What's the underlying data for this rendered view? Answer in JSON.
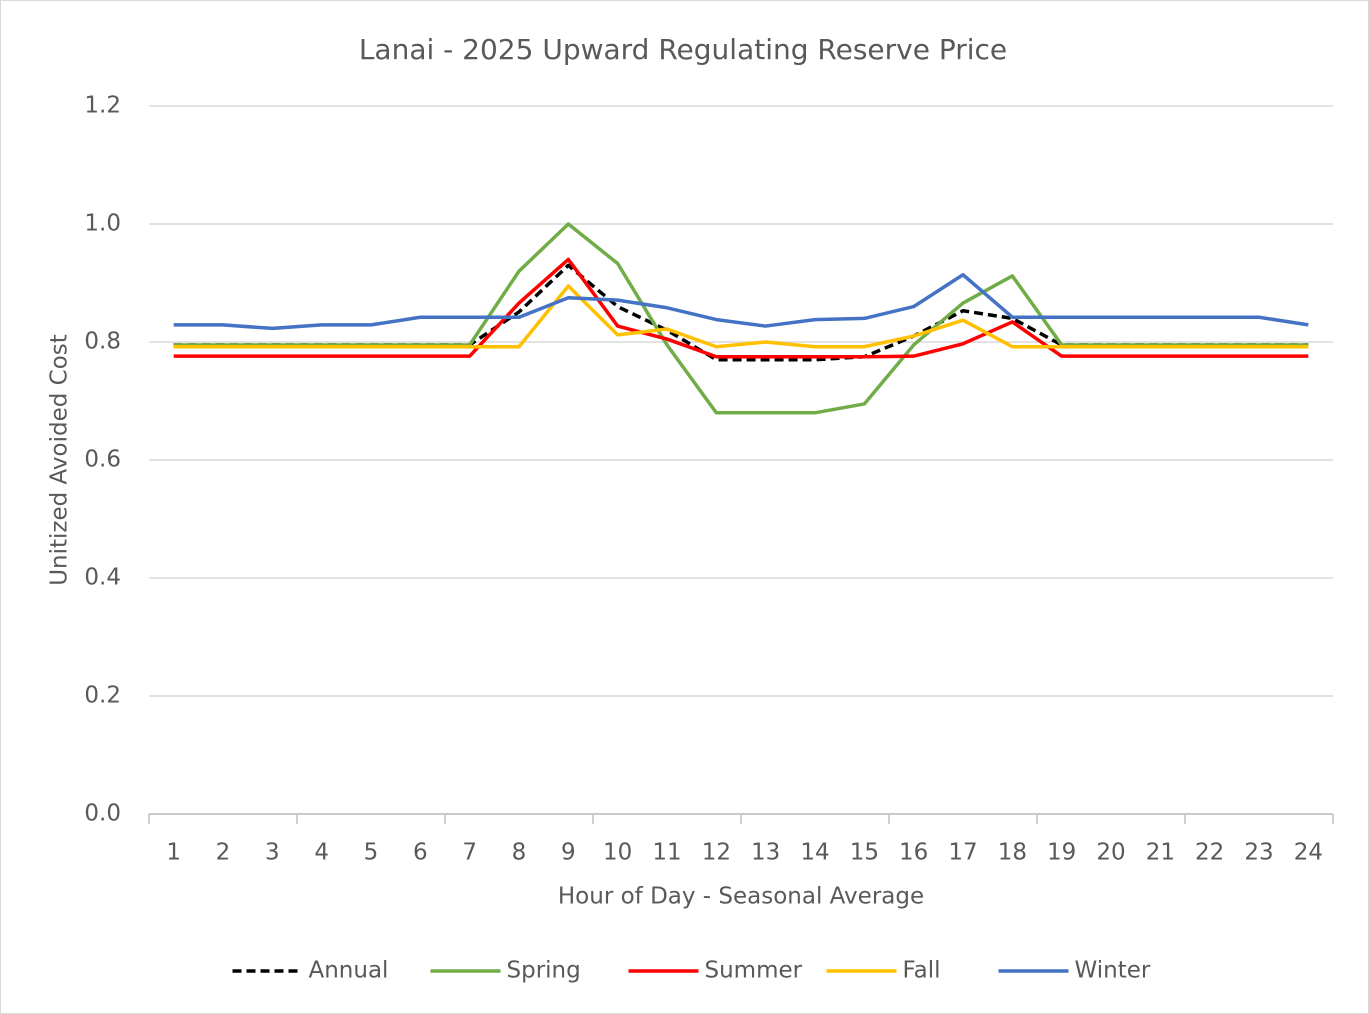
{
  "chart_data": {
    "type": "line",
    "title": "Lanai - 2025 Upward Regulating Reserve Price",
    "x_label": "Hour of Day - Seasonal Average",
    "y_label": "Unitized Avoided Cost",
    "categories": [
      "1",
      "2",
      "3",
      "4",
      "5",
      "6",
      "7",
      "8",
      "9",
      "10",
      "11",
      "12",
      "13",
      "14",
      "15",
      "16",
      "17",
      "18",
      "19",
      "20",
      "21",
      "22",
      "23",
      "24"
    ],
    "ylim": [
      0,
      1.2
    ],
    "yticks": [
      {
        "value": 0,
        "label": "0.0"
      },
      0.2,
      0.4,
      0.6,
      0.8,
      {
        "value": 1,
        "label": "1.0"
      },
      1.2
    ],
    "grid": true,
    "legend": "bottom",
    "series": [
      {
        "name": "Annual",
        "color": "#000000",
        "dashed": true,
        "values": [
          0.795,
          0.795,
          0.795,
          0.795,
          0.795,
          0.795,
          0.795,
          0.851,
          0.93,
          0.86,
          0.82,
          0.77,
          0.77,
          0.77,
          0.775,
          0.81,
          0.853,
          0.84,
          0.795,
          0.795,
          0.795,
          0.795,
          0.795,
          0.795
        ]
      },
      {
        "name": "Spring",
        "color": "#70ad47",
        "values": [
          0.795,
          0.795,
          0.795,
          0.795,
          0.795,
          0.795,
          0.795,
          0.92,
          1.0,
          0.933,
          0.795,
          0.68,
          0.68,
          0.68,
          0.695,
          0.795,
          0.866,
          0.912,
          0.795,
          0.795,
          0.795,
          0.795,
          0.795,
          0.795
        ]
      },
      {
        "name": "Summer",
        "color": "#ff0000",
        "values": [
          0.776,
          0.776,
          0.776,
          0.776,
          0.776,
          0.776,
          0.776,
          0.866,
          0.94,
          0.827,
          0.805,
          0.775,
          0.775,
          0.775,
          0.775,
          0.776,
          0.797,
          0.834,
          0.776,
          0.776,
          0.776,
          0.776,
          0.776,
          0.776
        ]
      },
      {
        "name": "Fall",
        "color": "#ffc000",
        "values": [
          0.792,
          0.792,
          0.792,
          0.792,
          0.792,
          0.792,
          0.792,
          0.792,
          0.895,
          0.812,
          0.822,
          0.792,
          0.8,
          0.792,
          0.792,
          0.81,
          0.837,
          0.792,
          0.792,
          0.792,
          0.792,
          0.792,
          0.792,
          0.792
        ]
      },
      {
        "name": "Winter",
        "color": "#4472c4",
        "values": [
          0.829,
          0.829,
          0.823,
          0.829,
          0.829,
          0.842,
          0.842,
          0.842,
          0.875,
          0.871,
          0.858,
          0.838,
          0.827,
          0.838,
          0.84,
          0.86,
          0.914,
          0.842,
          0.842,
          0.842,
          0.842,
          0.842,
          0.842,
          0.829
        ]
      }
    ]
  }
}
